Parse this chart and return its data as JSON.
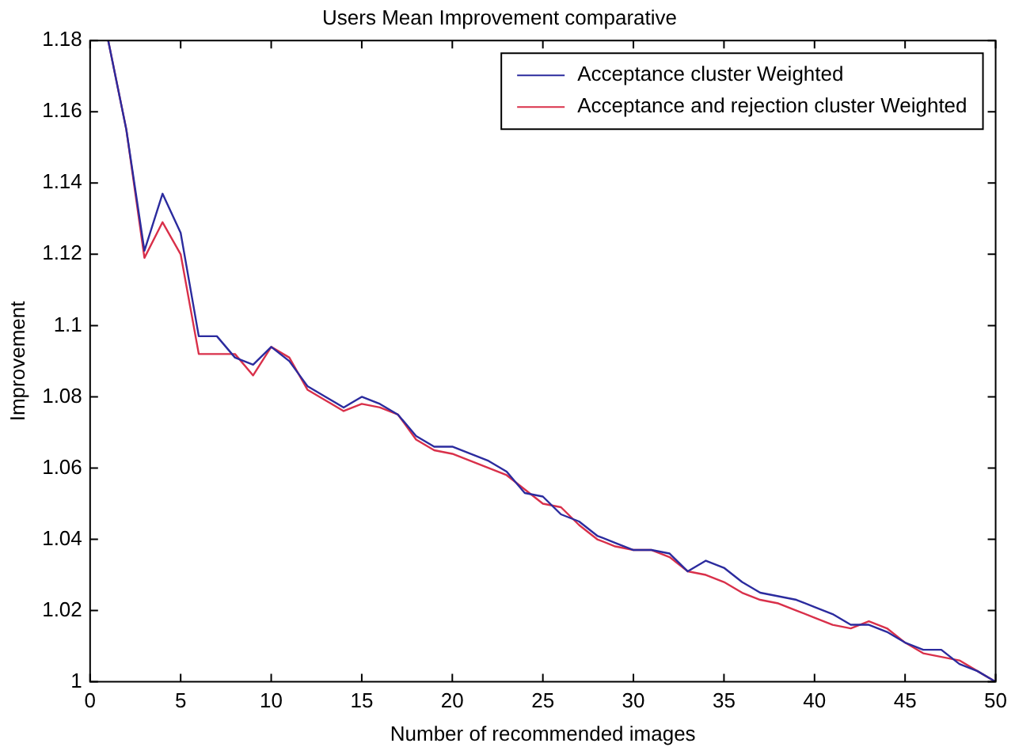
{
  "chart_data": {
    "type": "line",
    "title": "Users Mean Improvement comparative",
    "xlabel": "Number of recommended images",
    "ylabel": "Improvement",
    "x": [
      1,
      2,
      3,
      4,
      5,
      6,
      7,
      8,
      9,
      10,
      11,
      12,
      13,
      14,
      15,
      16,
      17,
      18,
      19,
      20,
      21,
      22,
      23,
      24,
      25,
      26,
      27,
      28,
      29,
      30,
      31,
      32,
      33,
      34,
      35,
      36,
      37,
      38,
      39,
      40,
      41,
      42,
      43,
      44,
      45,
      46,
      47,
      48,
      49,
      50
    ],
    "series": [
      {
        "name": "Acceptance cluster Weighted",
        "color": "#2b2b9e",
        "values": [
          1.18,
          1.155,
          1.121,
          1.137,
          1.126,
          1.097,
          1.097,
          1.091,
          1.089,
          1.094,
          1.09,
          1.083,
          1.08,
          1.077,
          1.08,
          1.078,
          1.075,
          1.069,
          1.066,
          1.066,
          1.064,
          1.062,
          1.059,
          1.053,
          1.052,
          1.047,
          1.045,
          1.041,
          1.039,
          1.037,
          1.037,
          1.036,
          1.031,
          1.034,
          1.032,
          1.028,
          1.025,
          1.024,
          1.023,
          1.021,
          1.019,
          1.016,
          1.016,
          1.014,
          1.011,
          1.009,
          1.009,
          1.005,
          1.003,
          1.0
        ]
      },
      {
        "name": "Acceptance and rejection cluster Weighted",
        "color": "#d9304a",
        "values": [
          1.18,
          1.155,
          1.119,
          1.129,
          1.12,
          1.092,
          1.092,
          1.092,
          1.086,
          1.094,
          1.091,
          1.082,
          1.079,
          1.076,
          1.078,
          1.077,
          1.075,
          1.068,
          1.065,
          1.064,
          1.062,
          1.06,
          1.058,
          1.054,
          1.05,
          1.049,
          1.044,
          1.04,
          1.038,
          1.037,
          1.037,
          1.035,
          1.031,
          1.03,
          1.028,
          1.025,
          1.023,
          1.022,
          1.02,
          1.018,
          1.016,
          1.015,
          1.017,
          1.015,
          1.011,
          1.008,
          1.007,
          1.006,
          1.003,
          1.0
        ]
      }
    ],
    "xlim": [
      0,
      50
    ],
    "xticks": [
      0,
      5,
      10,
      15,
      20,
      25,
      30,
      35,
      40,
      45,
      50
    ],
    "ylim": [
      1,
      1.18
    ],
    "yticks": [
      1,
      1.02,
      1.04,
      1.06,
      1.08,
      1.1,
      1.12,
      1.14,
      1.16,
      1.18
    ],
    "grid": false,
    "legend": "top right",
    "marker": "none",
    "line_style": "solid"
  }
}
